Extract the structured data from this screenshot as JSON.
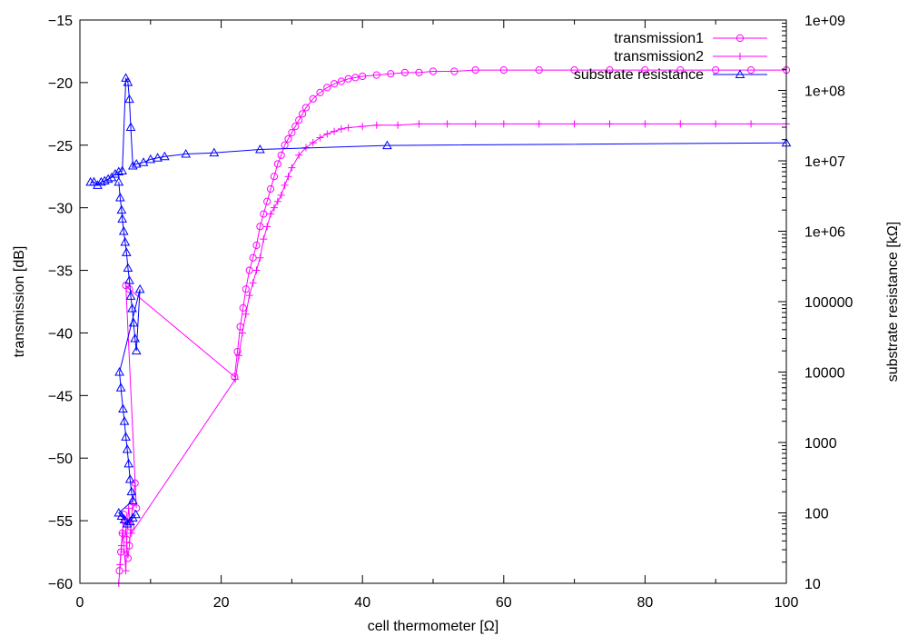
{
  "chart_data": {
    "type": "scatter",
    "xlabel": "cell thermometer [Ω]",
    "ylabel": "transmission [dB]",
    "y2label": "substrate resistance [kΩ]",
    "xlim": [
      0,
      100
    ],
    "ylim": [
      -60,
      -15
    ],
    "y2lim": [
      10,
      1000000000
    ],
    "y2scale": "log",
    "grid": false,
    "legend_position": "top-right",
    "x_ticks": [
      "0",
      "20",
      "40",
      "60",
      "80",
      "100"
    ],
    "y_ticks": [
      "−15",
      "−20",
      "−25",
      "−30",
      "−35",
      "−40",
      "−45",
      "−50",
      "−55",
      "−60"
    ],
    "y2_ticks": [
      "1e+09",
      "1e+08",
      "1e+07",
      "1e+06",
      "100000",
      "10000",
      "1000",
      "100",
      "10"
    ],
    "series": [
      {
        "name": "transmission1",
        "axis": "left",
        "color": "#ff00ff",
        "marker": "circle",
        "x": [
          5.6,
          5.8,
          6.0,
          6.2,
          6.4,
          6.6,
          6.8,
          7.0,
          7.2,
          7.5,
          7.8,
          8.0,
          6.5,
          7.0,
          21.9,
          22.3,
          22.7,
          23.1,
          23.5,
          24.0,
          24.5,
          25.0,
          25.5,
          26.0,
          26.5,
          27.0,
          27.5,
          28.0,
          28.5,
          29.0,
          29.5,
          30.0,
          30.5,
          31.0,
          31.5,
          32.0,
          33.0,
          34.0,
          35.0,
          36.0,
          37.0,
          38.0,
          39.0,
          40.0,
          42.0,
          44.0,
          46.0,
          48.0,
          50.0,
          53.0,
          56.0,
          60.0,
          65.0,
          70.0,
          75.0,
          80.0,
          85.0,
          90.0,
          95.0,
          100.0
        ],
        "y": [
          -59.0,
          -57.5,
          -56.0,
          -54.5,
          -55.0,
          -56.5,
          -58.0,
          -57.0,
          -55.5,
          -53.5,
          -52.0,
          -54.0,
          -36.2,
          -36.5,
          -43.5,
          -41.5,
          -39.5,
          -38.0,
          -36.5,
          -35.0,
          -34.0,
          -33.0,
          -31.5,
          -30.5,
          -29.5,
          -28.5,
          -27.5,
          -26.5,
          -25.8,
          -25.0,
          -24.5,
          -24.0,
          -23.5,
          -23.0,
          -22.5,
          -22.0,
          -21.3,
          -20.8,
          -20.4,
          -20.1,
          -19.9,
          -19.7,
          -19.6,
          -19.5,
          -19.4,
          -19.3,
          -19.2,
          -19.2,
          -19.1,
          -19.1,
          -19.0,
          -19.0,
          -19.0,
          -19.0,
          -19.0,
          -19.0,
          -19.0,
          -19.0,
          -19.0,
          -19.0
        ]
      },
      {
        "name": "transmission2",
        "axis": "left",
        "color": "#ff00ff",
        "marker": "plus",
        "x": [
          5.5,
          5.7,
          5.9,
          6.1,
          6.3,
          6.5,
          6.7,
          6.9,
          7.1,
          7.3,
          22.0,
          22.5,
          23.0,
          23.5,
          24.0,
          24.5,
          25.0,
          25.5,
          26.0,
          26.5,
          27.0,
          27.5,
          28.0,
          28.5,
          29.0,
          29.5,
          30.0,
          31.0,
          32.0,
          33.0,
          34.0,
          35.0,
          36.0,
          37.0,
          38.0,
          40.0,
          42.0,
          45.0,
          48.0,
          52.0,
          56.0,
          60.0,
          65.0,
          70.0,
          75.0,
          80.0,
          85.0,
          90.0,
          95.0,
          100.0
        ],
        "y": [
          -60.0,
          -58.5,
          -57.0,
          -56.0,
          -57.5,
          -59.0,
          -55.5,
          -54.0,
          -55.0,
          -56.0,
          -43.7,
          -41.8,
          -40.0,
          -38.5,
          -37.0,
          -36.0,
          -35.0,
          -34.0,
          -32.5,
          -31.5,
          -30.5,
          -30.0,
          -29.5,
          -29.0,
          -28.2,
          -27.5,
          -26.8,
          -25.8,
          -25.2,
          -24.8,
          -24.4,
          -24.1,
          -23.9,
          -23.7,
          -23.6,
          -23.5,
          -23.4,
          -23.4,
          -23.3,
          -23.3,
          -23.3,
          -23.3,
          -23.3,
          -23.3,
          -23.3,
          -23.3,
          -23.3,
          -23.3,
          -23.3,
          -23.3
        ]
      },
      {
        "name": "substrate resistance",
        "axis": "right",
        "color": "#0000ff",
        "marker": "triangle",
        "x": [
          1.5,
          2.0,
          2.5,
          3.0,
          3.5,
          4.0,
          4.5,
          5.0,
          5.5,
          6.0,
          6.5,
          6.8,
          7.0,
          7.2,
          7.5,
          8.0,
          9.0,
          10.0,
          11.0,
          12.0,
          15.0,
          19.0,
          25.5,
          43.5,
          100.0
        ],
        "y": [
          5000000.0,
          5000000.0,
          4500000.0,
          5000000.0,
          5200000.0,
          5500000.0,
          5800000.0,
          6500000.0,
          7000000.0,
          7200000.0,
          150000000.0,
          130000000.0,
          75000000.0,
          30000000.0,
          8500000.0,
          9000000.0,
          9500000.0,
          10500000.0,
          11000000.0,
          11500000.0,
          12500000.0,
          13000000.0,
          14500000.0,
          16500000.0,
          18000000.0
        ],
        "extra_points_x": [
          5.5,
          5.7,
          5.9,
          6.0,
          6.2,
          6.4,
          6.6,
          6.8,
          7.0,
          7.2,
          7.4,
          7.6,
          7.8,
          8.0,
          8.5,
          5.6,
          5.8,
          6.1,
          6.3,
          6.5,
          6.7,
          6.9,
          7.1,
          7.3,
          7.5,
          5.5,
          5.9,
          6.3,
          6.7,
          7.1,
          7.5,
          7.9
        ],
        "extra_points_y": [
          5000000.0,
          3000000.0,
          2000000.0,
          1500000.0,
          1000000.0,
          700000.0,
          500000.0,
          300000.0,
          200000.0,
          120000.0,
          80000.0,
          50000.0,
          30000.0,
          20000.0,
          150000.0,
          10000.0,
          6000.0,
          3000.0,
          2000.0,
          1200.0,
          800.0,
          500.0,
          300.0,
          200.0,
          150.0,
          100.0,
          90.0,
          80.0,
          70.0,
          75.0,
          85.0,
          95.0
        ]
      }
    ]
  }
}
